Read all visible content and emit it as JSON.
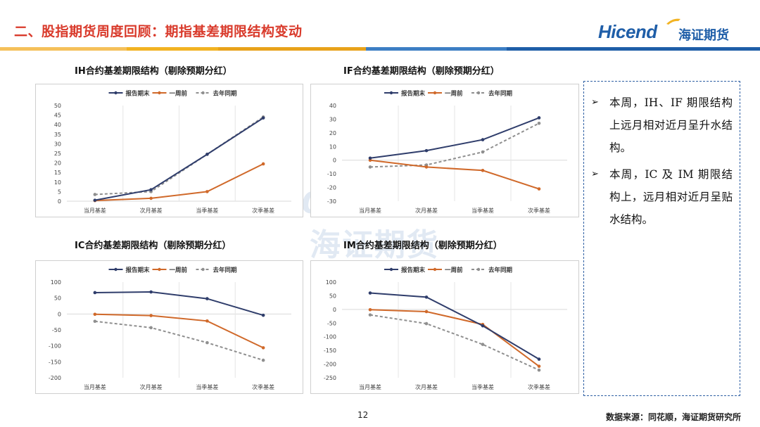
{
  "header": {
    "title": "二、股指期货周度回顾：期指基差期限结构变动",
    "logo_en": "Hicend",
    "logo_reg": "®",
    "logo_cn": "海证期货"
  },
  "colors": {
    "title_red": "#d93a2b",
    "brand_blue": "#1f5ea8",
    "series_report": "#2f3d6b",
    "series_week": "#d0692a",
    "series_lastyear": "#8f8f8f",
    "bar": [
      "#f2b322",
      "#f2b322",
      "#e8a21a",
      "#1f5ea8",
      "#1f5ea8",
      "#2a67b0"
    ]
  },
  "legend": [
    "报告期末",
    "一周前",
    "去年同期"
  ],
  "chart_data": [
    {
      "id": "ih",
      "type": "line",
      "title": "IH合约基差期限结构（剔除预期分红）",
      "categories": [
        "当月基差",
        "次月基差",
        "当季基差",
        "次季基差"
      ],
      "ylim": [
        0,
        50
      ],
      "yticks": [
        0,
        5,
        10,
        15,
        20,
        25,
        30,
        35,
        40,
        45,
        50
      ],
      "ytick_labels": [
        "0",
        "5",
        "10",
        "15",
        "20",
        "25",
        "30",
        "35",
        "40",
        "45",
        "50"
      ],
      "series": [
        {
          "name": "报告期末",
          "values": [
            0.5,
            6,
            24.5,
            43.5
          ]
        },
        {
          "name": "一周前",
          "values": [
            0.3,
            1.5,
            5,
            19.5
          ]
        },
        {
          "name": "去年同期",
          "values": [
            3.5,
            5,
            24.5,
            44
          ]
        }
      ]
    },
    {
      "id": "if",
      "type": "line",
      "title": "IF合约基差期限结构（剔除预期分红）",
      "categories": [
        "当月基差",
        "次月基差",
        "当季基差",
        "次季基差"
      ],
      "ylim": [
        -30,
        40
      ],
      "yticks": [
        -30,
        -20,
        -10,
        0,
        10,
        20,
        30,
        40
      ],
      "ytick_labels": [
        "-30",
        "-20",
        "-10",
        "0",
        "10",
        "20",
        "30",
        "40"
      ],
      "series": [
        {
          "name": "报告期末",
          "values": [
            1.5,
            7,
            15,
            31
          ]
        },
        {
          "name": "一周前",
          "values": [
            0,
            -5,
            -7.5,
            -21
          ]
        },
        {
          "name": "去年同期",
          "values": [
            -5,
            -3.5,
            6,
            27
          ]
        }
      ]
    },
    {
      "id": "ic",
      "type": "line",
      "title": "IC合约基差期限结构（剔除预期分红）",
      "categories": [
        "当月基差",
        "次月基差",
        "当季基差",
        "次季基差"
      ],
      "ylim": [
        -200,
        100
      ],
      "yticks": [
        -200,
        -150,
        -100,
        -50,
        0,
        50,
        100
      ],
      "ytick_labels": [
        "-200",
        "-150",
        "-100",
        "-50",
        "0",
        "50",
        "100"
      ],
      "series": [
        {
          "name": "报告期末",
          "values": [
            67,
            69,
            48,
            -4
          ]
        },
        {
          "name": "一周前",
          "values": [
            -1,
            -5,
            -22,
            -106
          ]
        },
        {
          "name": "去年同期",
          "values": [
            -23,
            -43,
            -90,
            -145
          ]
        }
      ]
    },
    {
      "id": "im",
      "type": "line",
      "title": "IM合约基差期限结构（剔除预期分红）",
      "categories": [
        "当月基差",
        "次月基差",
        "当季基差",
        "次季基差"
      ],
      "ylim": [
        -250,
        100
      ],
      "yticks": [
        -250,
        -200,
        -150,
        -100,
        -50,
        0,
        50,
        100
      ],
      "ytick_labels": [
        "-250",
        "-200",
        "-150",
        "-100",
        "-50",
        "0",
        "50",
        "100"
      ],
      "series": [
        {
          "name": "报告期末",
          "values": [
            60,
            45,
            -60,
            -182
          ]
        },
        {
          "name": "一周前",
          "values": [
            -1,
            -8,
            -55,
            -208
          ]
        },
        {
          "name": "去年同期",
          "values": [
            -20,
            -52,
            -128,
            -222
          ]
        }
      ]
    }
  ],
  "watermark": {
    "en": "Hicend",
    "cn": "海证期货"
  },
  "notes": [
    "本周，IH、IF 期限结构上远月相对近月呈升水结构。",
    "本周，IC 及 IM 期限结构上，远月相对近月呈贴水结构。"
  ],
  "footer": {
    "page": "12",
    "source": "数据来源：同花顺，海证期货研究所"
  }
}
